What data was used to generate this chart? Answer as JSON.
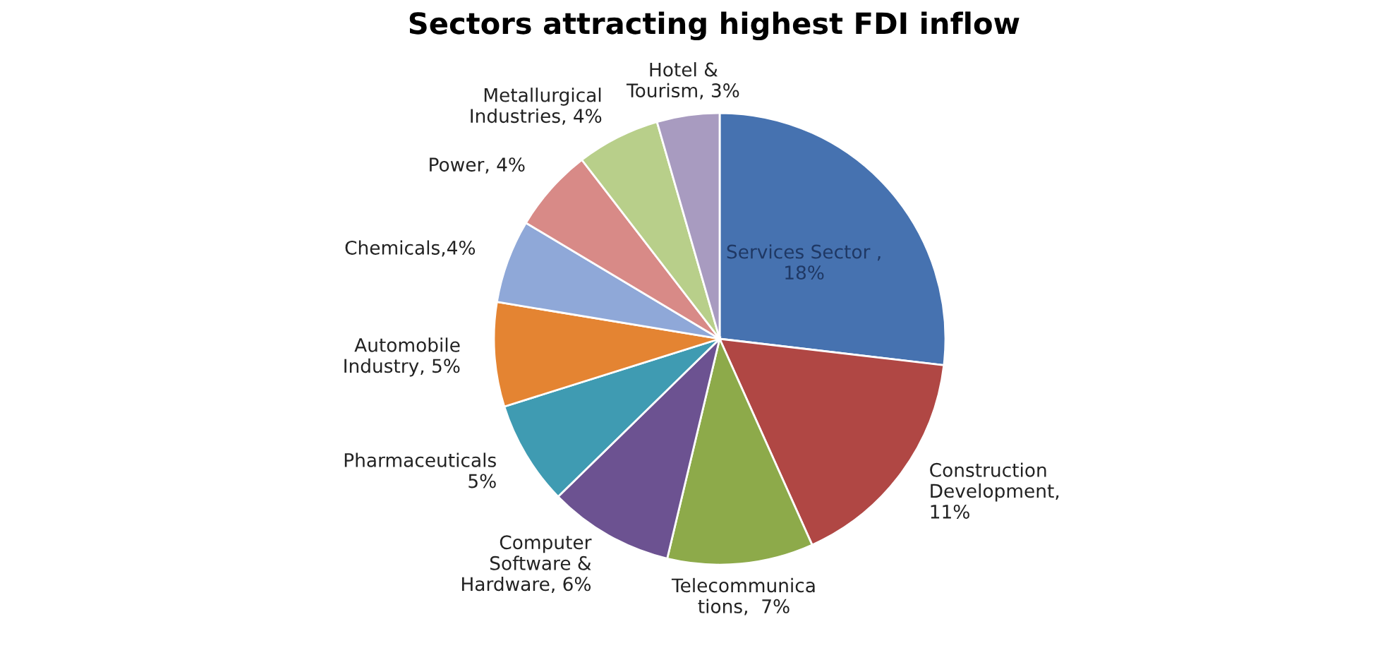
{
  "chart_data": {
    "type": "pie",
    "title": "Sectors attracting highest FDI inflow",
    "categories": [
      "Services Sector ,\n18%",
      "Construction\nDevelopment,\n11%",
      "Telecommunica\ntions,  7%",
      "Computer\nSoftware &\nHardware, 6%",
      "Pharmaceuticals\n5%",
      "Automobile\nIndustry, 5%",
      "Chemicals,4%",
      "Power, 4%",
      "Metallurgical\nIndustries, 4%",
      "Hotel &\nTourism, 3%"
    ],
    "values": [
      18,
      11,
      7,
      6,
      5,
      5,
      4,
      4,
      4,
      3
    ],
    "colors": [
      "#4672b0",
      "#b04744",
      "#8daa4a",
      "#6c5291",
      "#3f9bb2",
      "#e48432",
      "#8fa8d8",
      "#d88a87",
      "#b8cf8a",
      "#a89bc0"
    ],
    "legend": false
  }
}
